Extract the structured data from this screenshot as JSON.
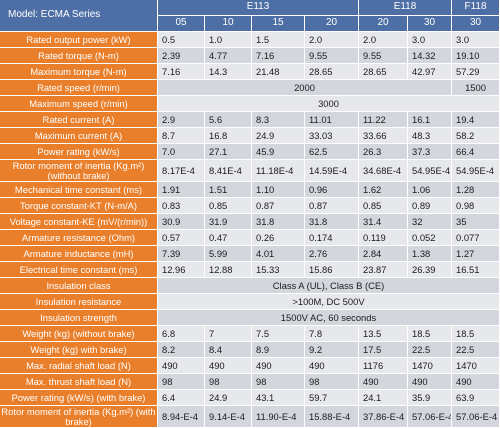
{
  "header": {
    "model": "Model: ECMA Series",
    "groups": [
      {
        "name": "E113",
        "subs": [
          "05",
          "10",
          "15",
          "20"
        ]
      },
      {
        "name": "E118",
        "subs": [
          "20",
          "30"
        ]
      },
      {
        "name": "F118",
        "subs": [
          "30"
        ]
      }
    ]
  },
  "rows": [
    {
      "label": "Rated output power (kW)",
      "values": [
        "0.5",
        "1.0",
        "1.5",
        "2.0",
        "2.0",
        "3.0",
        "3.0"
      ]
    },
    {
      "label": "Rated torque (N-m)",
      "values": [
        "2.39",
        "4.77",
        "7.16",
        "9.55",
        "9.55",
        "14.32",
        "19.10"
      ]
    },
    {
      "label": "Maximum torque (N-m)",
      "values": [
        "7.16",
        "14.3",
        "21.48",
        "28.65",
        "28.65",
        "42.97",
        "57.29"
      ]
    },
    {
      "label": "Rated speed (r/min)",
      "span": [
        {
          "text": "2000",
          "cols": 6
        },
        {
          "text": "1500",
          "cols": 1
        }
      ]
    },
    {
      "label": "Maximum speed (r/min)",
      "span": [
        {
          "text": "3000",
          "cols": 7
        }
      ]
    },
    {
      "label": "Rated current (A)",
      "values": [
        "2.9",
        "5.6",
        "8.3",
        "11.01",
        "11.22",
        "16.1",
        "19.4"
      ]
    },
    {
      "label": "Maximum current (A)",
      "values": [
        "8.7",
        "16.8",
        "24.9",
        "33.03",
        "33.66",
        "48.3",
        "58.2"
      ]
    },
    {
      "label": "Power rating (kW/s)",
      "values": [
        "7.0",
        "27.1",
        "45.9",
        "62.5",
        "26.3",
        "37.3",
        "66.4"
      ]
    },
    {
      "label": "Rotor moment of inertia (Kg.m²) (without brake)",
      "twoline": true,
      "values": [
        "8.17E-4",
        "8.41E-4",
        "11.18E-4",
        "14.59E-4",
        "34.68E-4",
        "54.95E-4",
        "54.95E-4"
      ]
    },
    {
      "label": "Mechanical time constant (ms)",
      "values": [
        "1.91",
        "1.51",
        "1.10",
        "0.96",
        "1.62",
        "1.06",
        "1.28"
      ]
    },
    {
      "label": "Torque constant-KT (N-m/A)",
      "values": [
        "0.83",
        "0.85",
        "0.87",
        "0.87",
        "0.85",
        "0.89",
        "0.98"
      ]
    },
    {
      "label": "Voltage constant-KE (mV/(r/min))",
      "values": [
        "30.9",
        "31.9",
        "31.8",
        "31.8",
        "31.4",
        "32",
        "35"
      ]
    },
    {
      "label": "Armature resistance (Ohm)",
      "values": [
        "0.57",
        "0.47",
        "0.26",
        "0.174",
        "0.119",
        "0.052",
        "0.077"
      ]
    },
    {
      "label": "Armature inductance (mH)",
      "values": [
        "7.39",
        "5.99",
        "4.01",
        "2.76",
        "2.84",
        "1.38",
        "1.27"
      ]
    },
    {
      "label": "Electrical time constant (ms)",
      "values": [
        "12.96",
        "12.88",
        "15.33",
        "15.86",
        "23.87",
        "26.39",
        "16.51"
      ]
    },
    {
      "label": "Insulation class",
      "span": [
        {
          "text": "Class A (UL), Class B (CE)",
          "cols": 7
        }
      ]
    },
    {
      "label": "Insulation resistance",
      "span": [
        {
          "text": ">100M, DC 500V",
          "cols": 7
        }
      ]
    },
    {
      "label": "Insulation strength",
      "span": [
        {
          "text": "1500V AC, 60 seconds",
          "cols": 7
        }
      ]
    },
    {
      "label": "Weight (kg) (without brake)",
      "values": [
        "6.8",
        "7",
        "7.5",
        "7.8",
        "13.5",
        "18.5",
        "18.5"
      ]
    },
    {
      "label": "Weight (kg) with brake)",
      "values": [
        "8.2",
        "8.4",
        "8.9",
        "9.2",
        "17.5",
        "22.5",
        "22.5"
      ]
    },
    {
      "label": "Max. radial shaft load (N)",
      "values": [
        "490",
        "490",
        "490",
        "490",
        "1176",
        "1470",
        "1470"
      ]
    },
    {
      "label": "Max. thrust shaft load (N)",
      "values": [
        "98",
        "98",
        "98",
        "98",
        "490",
        "490",
        "490"
      ]
    },
    {
      "label": "Power rating (kW/s) (with brake)",
      "values": [
        "6.4",
        "24.9",
        "43.1",
        "59.7",
        "24.1",
        "35.9",
        "63.9"
      ]
    },
    {
      "label": "Rotor moment of inertia (Kg.m²) (with brake)",
      "twoline": true,
      "values": [
        "8.94-E-4",
        "9.14-E-4",
        "11.90-E-4",
        "15.88-E-4",
        "37.86-E-4",
        "57.06-E-4",
        "57.06-E-4"
      ]
    }
  ]
}
